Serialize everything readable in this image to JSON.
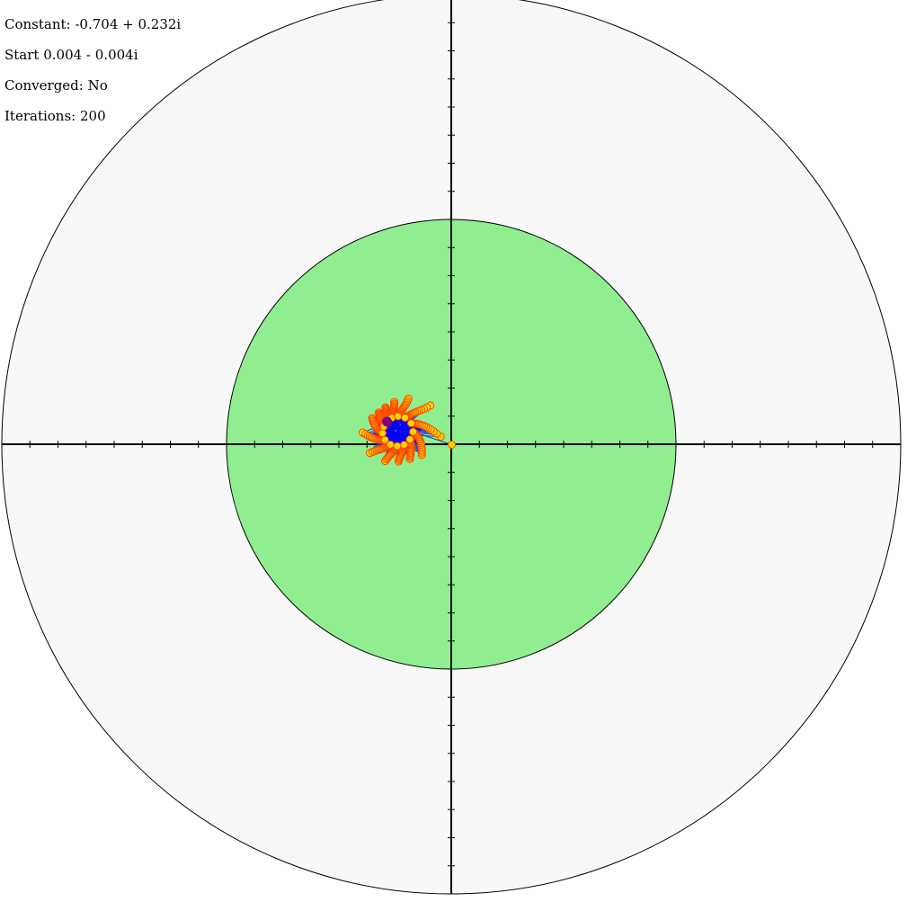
{
  "info": {
    "constant": "Constant: -0.704 + 0.232i",
    "start": "Start 0.004 - 0.004i",
    "converged": "Converged: No",
    "iterations": "Iterations: 200"
  },
  "simulation": {
    "constant": {
      "re": -0.704,
      "im": 0.232
    },
    "start": {
      "re": 0.004,
      "im": -0.004
    },
    "iterations": 200,
    "converged": false,
    "plane_radius": 4,
    "inner_radius": 2,
    "tick_step": 0.25
  },
  "colors": {
    "outer_disk": "#f8f8f8",
    "inner_disk": "#90ee90",
    "axis": "#000000",
    "orbit_line": "#1f3fd0",
    "orbit_line_inner": "#0000ff",
    "point_fill": "#ffd700",
    "point_stroke": "#ff4500",
    "last_point": "#800080"
  }
}
